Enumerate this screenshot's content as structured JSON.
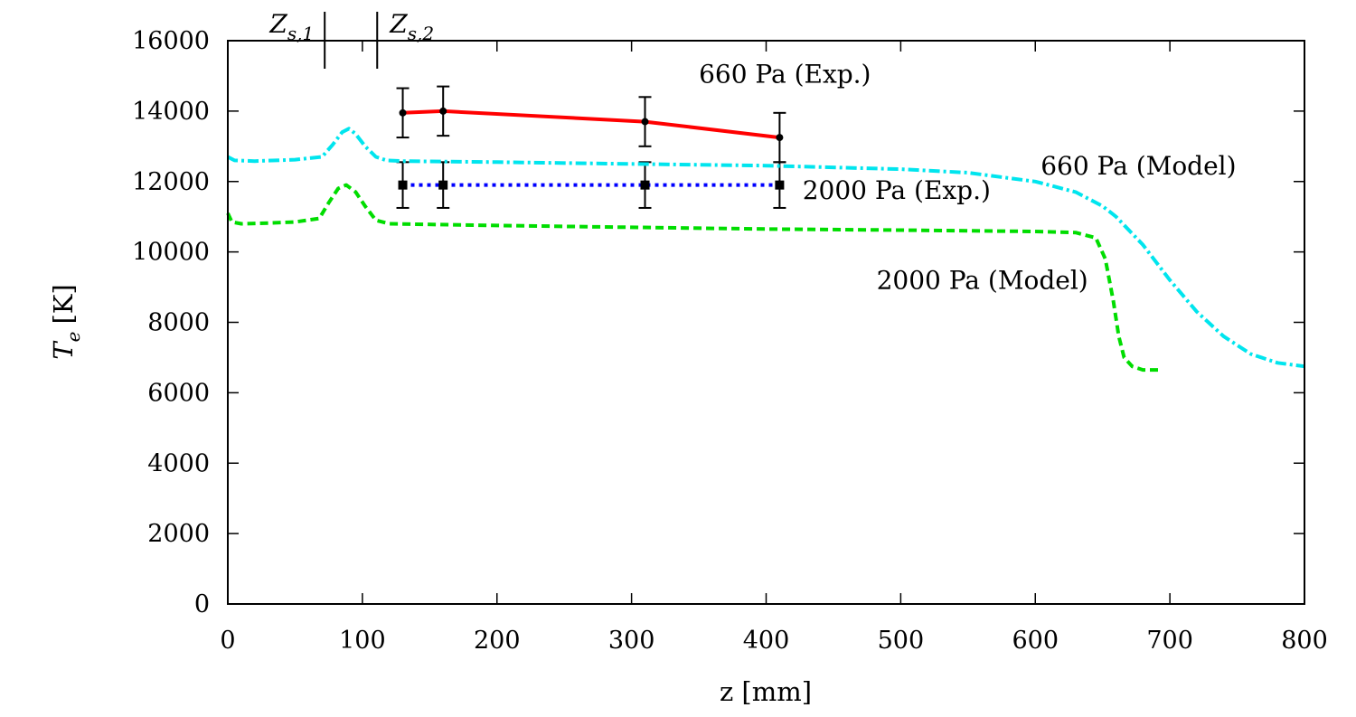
{
  "chart_data": {
    "type": "line",
    "xlabel": "z [mm]",
    "ylabel_main": "T",
    "ylabel_sub": "e",
    "ylabel_unit": "[K]",
    "xlim": [
      0,
      800
    ],
    "ylim": [
      0,
      16000
    ],
    "x_ticks": [
      "0",
      "100",
      "200",
      "300",
      "400",
      "500",
      "600",
      "700",
      "800"
    ],
    "y_ticks": [
      "0",
      "2000",
      "4000",
      "6000",
      "8000",
      "10000",
      "12000",
      "14000",
      "16000"
    ],
    "grid": false,
    "legend": "none",
    "markers": [
      {
        "main": "Z",
        "sub": "s,1",
        "x": 72
      },
      {
        "main": "Z",
        "sub": "s,2",
        "x": 111
      }
    ],
    "series": [
      {
        "name": "660 Pa (Exp.)",
        "color": "#ff0000",
        "style": "solid",
        "marker": "dot",
        "x": [
          130,
          160,
          310,
          410
        ],
        "y": [
          13950,
          14000,
          13700,
          13250
        ],
        "yerr": [
          700,
          700,
          700,
          700
        ]
      },
      {
        "name": "2000 Pa (Exp.)",
        "color": "#0000ff",
        "style": "dotted",
        "marker": "square",
        "x": [
          130,
          160,
          310,
          410
        ],
        "y": [
          11900,
          11900,
          11900,
          11900
        ],
        "yerr": [
          650,
          650,
          650,
          650
        ]
      },
      {
        "name": "660 Pa (Model)",
        "color": "#00e5ee",
        "style": "dashdot",
        "x": [
          0,
          5,
          20,
          50,
          70,
          78,
          85,
          90,
          95,
          102,
          110,
          118,
          130,
          200,
          300,
          400,
          500,
          550,
          600,
          630,
          650,
          660,
          680,
          700,
          720,
          740,
          760,
          780,
          800
        ],
        "y": [
          12700,
          12600,
          12580,
          12620,
          12700,
          13050,
          13400,
          13500,
          13350,
          13000,
          12700,
          12600,
          12580,
          12550,
          12500,
          12450,
          12350,
          12250,
          12000,
          11700,
          11300,
          11000,
          10200,
          9200,
          8300,
          7600,
          7100,
          6850,
          6750
        ]
      },
      {
        "name": "2000 Pa (Model)",
        "color": "#00dd00",
        "style": "dashed",
        "x": [
          0,
          3,
          10,
          30,
          50,
          68,
          75,
          82,
          88,
          95,
          102,
          110,
          120,
          200,
          300,
          400,
          500,
          600,
          630,
          645,
          652,
          658,
          662,
          666,
          672,
          680,
          693
        ],
        "y": [
          11100,
          10850,
          10800,
          10820,
          10850,
          10950,
          11400,
          11800,
          11900,
          11700,
          11300,
          10900,
          10800,
          10750,
          10700,
          10650,
          10620,
          10580,
          10550,
          10400,
          9800,
          8600,
          7600,
          7000,
          6750,
          6650,
          6650
        ]
      }
    ],
    "annotations": [
      {
        "text": "660 Pa (Exp.)",
        "x": 350,
        "y": 14800
      },
      {
        "text": "2000 Pa (Exp.)",
        "x": 427,
        "y": 11500
      },
      {
        "text": "660 Pa (Model)",
        "x": 604,
        "y": 12200
      },
      {
        "text": "2000 Pa (Model)",
        "x": 482,
        "y": 8950
      }
    ]
  }
}
